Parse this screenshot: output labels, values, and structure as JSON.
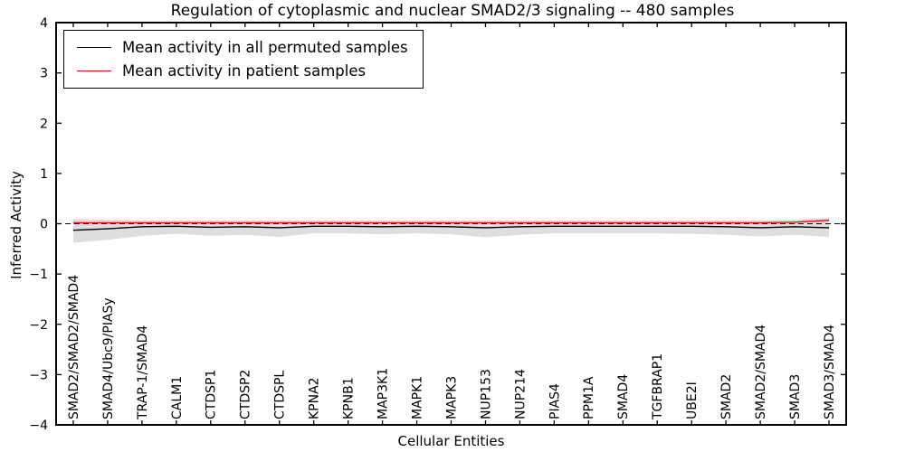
{
  "chart_data": {
    "type": "line",
    "title": "Regulation of cytoplasmic and nuclear SMAD2/3 signaling -- 480 samples",
    "xlabel": "Cellular Entities",
    "ylabel": "Inferred Activity",
    "ylim": [
      -4,
      4
    ],
    "yticks": [
      4,
      3,
      2,
      1,
      0,
      -1,
      -2,
      -3,
      -4
    ],
    "grid": false,
    "legend_position": "upper left",
    "categories": [
      "SMAD2/SMAD2/SMAD4",
      "SMAD4/Ubc9/PIASy",
      "TRAP-1/SMAD4",
      "CALM1",
      "CTDSP1",
      "CTDSP2",
      "CTDSPL",
      "KPNA2",
      "KPNB1",
      "MAP3K1",
      "MAPK1",
      "MAPK3",
      "NUP153",
      "NUP214",
      "PIAS4",
      "PPM1A",
      "SMAD4",
      "TGFBRAP1",
      "UBE2I",
      "SMAD2",
      "SMAD2/SMAD4",
      "SMAD3",
      "SMAD3/SMAD4"
    ],
    "series": [
      {
        "name": "Mean activity in all permuted samples",
        "color": "#000000",
        "style": "solid",
        "values": [
          -0.13,
          -0.1,
          -0.06,
          -0.05,
          -0.07,
          -0.06,
          -0.08,
          -0.05,
          -0.05,
          -0.06,
          -0.05,
          -0.06,
          -0.08,
          -0.06,
          -0.05,
          -0.05,
          -0.05,
          -0.05,
          -0.05,
          -0.06,
          -0.08,
          -0.06,
          -0.08
        ]
      },
      {
        "name": "Mean activity in patient samples",
        "color": "#ff0000",
        "style": "solid",
        "values": [
          0.02,
          0.02,
          0.02,
          0.02,
          0.02,
          0.02,
          0.02,
          0.02,
          0.02,
          0.02,
          0.02,
          0.02,
          0.02,
          0.02,
          0.02,
          0.02,
          0.02,
          0.02,
          0.02,
          0.02,
          0.02,
          0.03,
          0.07
        ]
      }
    ],
    "band": {
      "name": "permuted-samples-range",
      "color": "#dedede",
      "upper": [
        0.1,
        0.08,
        0.07,
        0.07,
        0.07,
        0.07,
        0.07,
        0.07,
        0.07,
        0.07,
        0.07,
        0.07,
        0.07,
        0.07,
        0.07,
        0.07,
        0.07,
        0.07,
        0.07,
        0.07,
        0.07,
        0.08,
        0.12
      ],
      "lower": [
        -0.38,
        -0.32,
        -0.24,
        -0.2,
        -0.24,
        -0.22,
        -0.26,
        -0.19,
        -0.19,
        -0.21,
        -0.19,
        -0.21,
        -0.27,
        -0.22,
        -0.19,
        -0.19,
        -0.19,
        -0.19,
        -0.2,
        -0.22,
        -0.25,
        -0.22,
        -0.26
      ]
    },
    "zero_line": {
      "y": 0,
      "style": "dashed",
      "color": "#000000"
    }
  },
  "legend": {
    "items": [
      {
        "label": "Mean activity in all permuted samples",
        "color": "#000000"
      },
      {
        "label": "Mean activity in patient samples",
        "color": "#ff0000"
      }
    ]
  },
  "frame": {
    "color": "#000000"
  }
}
